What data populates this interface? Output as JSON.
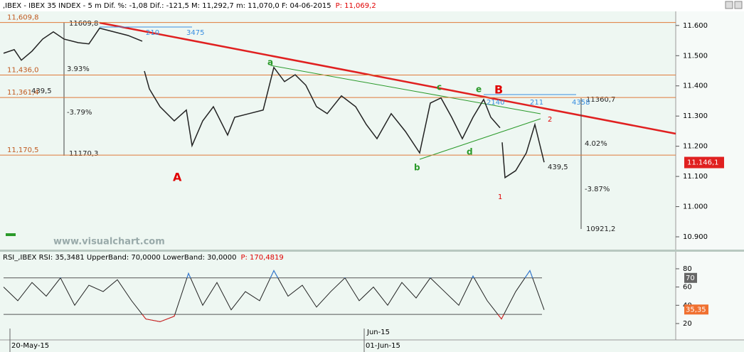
{
  "header": {
    "text": ",IBEX - IBEX 35 INDEX -  5 m Dif. %: -1,08 Dif.: -121,5 M: 11,292,7 m: 11,070,0 F: 04-06-2015",
    "price": "P: 11,069,2"
  },
  "watermark": "www.visualchart.com",
  "xlabels": [
    "20-May-15",
    "Jun-15",
    "01-Jun-15"
  ],
  "annotations": {
    "top_high": "11609,8",
    "top_count": "3475",
    "top_small": "210",
    "pct_up_left": "3.93%",
    "range_left": "439,5",
    "pct_down_left": "-3.79%",
    "low_left": "11170,3",
    "wave_A": "A",
    "wave_a": "a",
    "wave_b": "b",
    "wave_c": "c",
    "wave_d": "d",
    "wave_e": "e",
    "wave_B": "B",
    "wave_1": "1",
    "wave_2": "2",
    "right_high": "11360,7",
    "right_count": "4358",
    "right_small": "211",
    "e_count": "2140",
    "pct_up_right": "4.02%",
    "range_right": "439,5",
    "pct_down_right": "-3.87%",
    "low_right": "10921,2"
  },
  "chart_data": [
    {
      "type": "line",
      "color": "#222222",
      "x": [
        5,
        20,
        30,
        45,
        60,
        75,
        90,
        110,
        125,
        140,
        160,
        180,
        200,
        202,
        203,
        210,
        225,
        245,
        262,
        270,
        285,
        300,
        320,
        330,
        350,
        370,
        385,
        400,
        415,
        430,
        445,
        460,
        480,
        500,
        515,
        530,
        550,
        570,
        590,
        605,
        620,
        635,
        650,
        665,
        680,
        690,
        703,
        704,
        706,
        710,
        725,
        740,
        752,
        765
      ],
      "values": [
        11508,
        11520,
        11485,
        11515,
        11555,
        11579,
        11555,
        11543,
        11539,
        11591,
        11579,
        11567,
        11548,
        null,
        11449,
        11390,
        11331,
        11284,
        11320,
        11202,
        11284,
        11331,
        11237,
        11296,
        11308,
        11320,
        11461,
        11414,
        11437,
        11402,
        11331,
        11308,
        11367,
        11331,
        11272,
        11225,
        11308,
        11249,
        11178,
        11343,
        11360,
        11296,
        11225,
        11296,
        11355,
        11296,
        11261,
        null,
        11213,
        11096,
        11119,
        11178,
        11272,
        11147
      ],
      "xlim": [
        0,
        950
      ],
      "ylim": [
        10860,
        11642
      ],
      "yticks": [
        {
          "value": 10900,
          "label": "10.900"
        },
        {
          "value": 11000,
          "label": "11.000"
        },
        {
          "value": 11100,
          "label": "11.100"
        },
        {
          "value": 11200,
          "label": "11.200"
        },
        {
          "value": 11300,
          "label": "11.300"
        },
        {
          "value": 11400,
          "label": "11.400"
        },
        {
          "value": 11500,
          "label": "11.500"
        },
        {
          "value": 11600,
          "label": "11.600"
        }
      ],
      "levels": [
        {
          "value": 11609.8,
          "label": "11,609,8"
        },
        {
          "value": 11436.0,
          "label": "11,436,0"
        },
        {
          "value": 11361.4,
          "label": "11,361,4"
        },
        {
          "value": 11170.5,
          "label": "11,170,5"
        }
      ],
      "last": {
        "value": 11146.1,
        "label": "11.146,1"
      }
    },
    {
      "type": "line",
      "color": "#222222",
      "title": "RSI_,IBEX RSI: 35,3481 UpperBand: 70,0000 LowerBand: 30,0000",
      "title_price": "P: 170,4819",
      "x": [
        5,
        25,
        45,
        65,
        85,
        105,
        125,
        145,
        165,
        185,
        205,
        225,
        245,
        265,
        285,
        305,
        325,
        345,
        365,
        385,
        405,
        425,
        445,
        465,
        485,
        505,
        525,
        545,
        565,
        585,
        605,
        625,
        645,
        665,
        685,
        705,
        725,
        745,
        765
      ],
      "values": [
        60,
        45,
        65,
        50,
        70,
        40,
        62,
        55,
        68,
        45,
        25,
        22,
        28,
        75,
        40,
        65,
        35,
        55,
        45,
        78,
        50,
        62,
        38,
        55,
        70,
        45,
        60,
        40,
        65,
        48,
        70,
        55,
        40,
        72,
        45,
        25,
        55,
        78,
        35
      ],
      "xlim": [
        0,
        950
      ],
      "ylim": [
        4.4,
        86.2
      ],
      "yticks": [
        20,
        40,
        60,
        80
      ],
      "bands": [
        70,
        30
      ],
      "tags": [
        {
          "value": 70,
          "label": "70"
        },
        {
          "value": 35.35,
          "label": "35,35"
        }
      ]
    }
  ]
}
